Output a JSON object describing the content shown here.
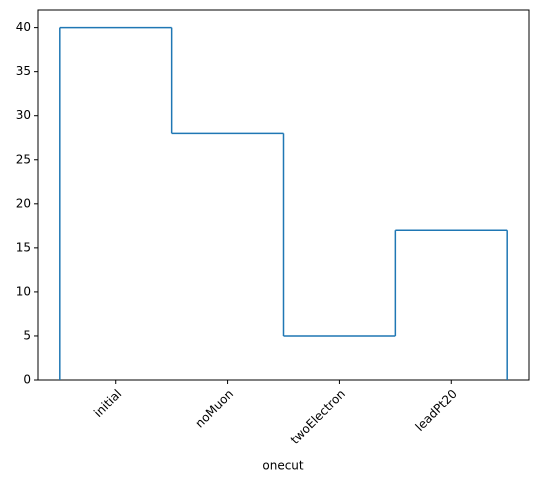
{
  "chart_data": {
    "type": "step",
    "categories": [
      "initial",
      "noMuon",
      "twoElectron",
      "leadPt20"
    ],
    "values": [
      40,
      28,
      5,
      17
    ],
    "color": "#1f77b4",
    "xlabel": "onecut",
    "ylim": [
      0,
      42
    ],
    "yticks": [
      0,
      5,
      10,
      15,
      20,
      25,
      30,
      35,
      40
    ]
  }
}
